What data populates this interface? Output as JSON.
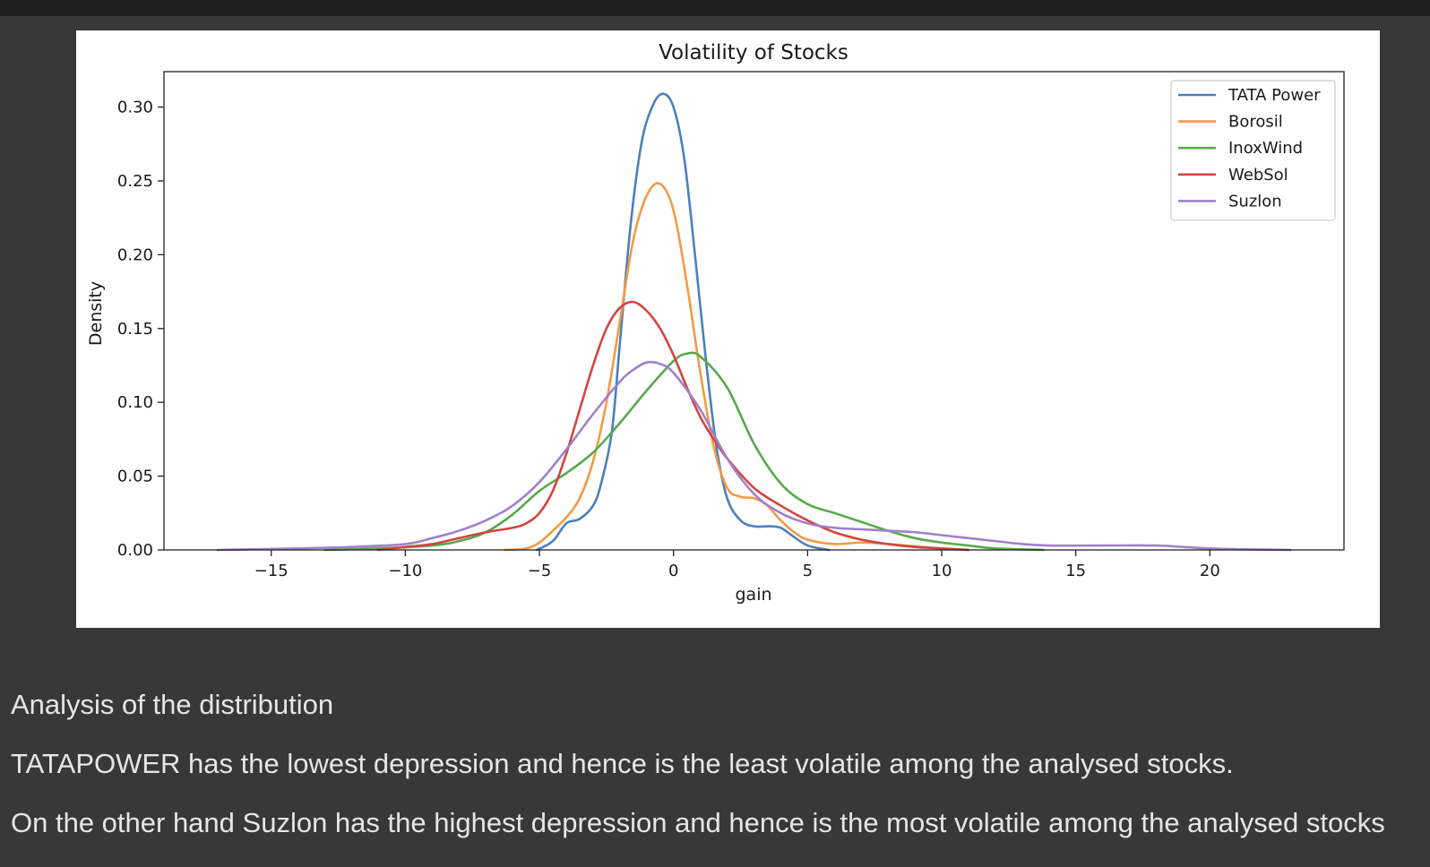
{
  "notebook": {
    "analysis_heading": "Analysis of the distribution",
    "analysis_line_1": "TATAPOWER has the lowest depression and hence is the least volatile among the analysed stocks.",
    "analysis_line_2": "On the other hand Suzlon has the highest depression and hence is the most volatile among the analysed stocks"
  },
  "chart_data": {
    "type": "line",
    "title": "Volatility of Stocks",
    "xlabel": "gain",
    "ylabel": "Density",
    "xlim": [
      -19,
      25
    ],
    "ylim": [
      0,
      0.324
    ],
    "xticks": [
      -15,
      -10,
      -5,
      0,
      5,
      10,
      15,
      20
    ],
    "xtick_labels": [
      "−15",
      "−10",
      "−5",
      "0",
      "5",
      "10",
      "15",
      "20"
    ],
    "yticks": [
      0.0,
      0.05,
      0.1,
      0.15,
      0.2,
      0.25,
      0.3
    ],
    "ytick_labels": [
      "0.00",
      "0.05",
      "0.10",
      "0.15",
      "0.20",
      "0.25",
      "0.30"
    ],
    "grid": false,
    "legend_position": "top-right",
    "series": [
      {
        "name": "TATA Power",
        "color": "#4c80bc",
        "points": [
          [
            -5.1,
            0
          ],
          [
            -4.5,
            0.006
          ],
          [
            -4,
            0.018
          ],
          [
            -3.5,
            0.021
          ],
          [
            -3,
            0.03
          ],
          [
            -2.7,
            0.045
          ],
          [
            -2.3,
            0.08
          ],
          [
            -2,
            0.14
          ],
          [
            -1.6,
            0.22
          ],
          [
            -1.2,
            0.275
          ],
          [
            -0.8,
            0.3
          ],
          [
            -0.4,
            0.309
          ],
          [
            0,
            0.3
          ],
          [
            0.4,
            0.265
          ],
          [
            0.8,
            0.2
          ],
          [
            1.2,
            0.13
          ],
          [
            1.6,
            0.07
          ],
          [
            2,
            0.035
          ],
          [
            2.5,
            0.02
          ],
          [
            3,
            0.016
          ],
          [
            3.6,
            0.016
          ],
          [
            4,
            0.015
          ],
          [
            4.4,
            0.01
          ],
          [
            5,
            0.003
          ],
          [
            5.8,
            0
          ]
        ]
      },
      {
        "name": "Borosil",
        "color": "#f39a44",
        "points": [
          [
            -6.3,
            0
          ],
          [
            -5.5,
            0.001
          ],
          [
            -5,
            0.005
          ],
          [
            -4.5,
            0.013
          ],
          [
            -4,
            0.022
          ],
          [
            -3.5,
            0.035
          ],
          [
            -3,
            0.06
          ],
          [
            -2.5,
            0.1
          ],
          [
            -2,
            0.155
          ],
          [
            -1.5,
            0.21
          ],
          [
            -1,
            0.24
          ],
          [
            -0.5,
            0.248
          ],
          [
            0,
            0.23
          ],
          [
            0.5,
            0.18
          ],
          [
            1,
            0.12
          ],
          [
            1.5,
            0.07
          ],
          [
            2,
            0.042
          ],
          [
            2.5,
            0.036
          ],
          [
            3,
            0.035
          ],
          [
            3.5,
            0.03
          ],
          [
            4,
            0.02
          ],
          [
            4.5,
            0.012
          ],
          [
            5,
            0.007
          ],
          [
            6,
            0.004
          ],
          [
            7,
            0.005
          ],
          [
            8,
            0.004
          ],
          [
            10,
            0.001
          ],
          [
            11,
            0
          ]
        ]
      },
      {
        "name": "InoxWind",
        "color": "#58a84c",
        "points": [
          [
            -13,
            0
          ],
          [
            -11,
            0.001
          ],
          [
            -9,
            0.003
          ],
          [
            -8,
            0.006
          ],
          [
            -7,
            0.012
          ],
          [
            -6,
            0.024
          ],
          [
            -5,
            0.04
          ],
          [
            -4,
            0.052
          ],
          [
            -3,
            0.066
          ],
          [
            -2,
            0.086
          ],
          [
            -1,
            0.108
          ],
          [
            0,
            0.128
          ],
          [
            0.5,
            0.133
          ],
          [
            1,
            0.131
          ],
          [
            2,
            0.11
          ],
          [
            3,
            0.072
          ],
          [
            4,
            0.045
          ],
          [
            5,
            0.031
          ],
          [
            6,
            0.025
          ],
          [
            7,
            0.019
          ],
          [
            8,
            0.013
          ],
          [
            9,
            0.008
          ],
          [
            10,
            0.005
          ],
          [
            11,
            0.003
          ],
          [
            12,
            0.001
          ],
          [
            13.8,
            0
          ]
        ]
      },
      {
        "name": "WebSol",
        "color": "#d24541",
        "points": [
          [
            -11,
            0
          ],
          [
            -10,
            0.002
          ],
          [
            -9,
            0.004
          ],
          [
            -8,
            0.008
          ],
          [
            -7,
            0.012
          ],
          [
            -6,
            0.015
          ],
          [
            -5.5,
            0.018
          ],
          [
            -5,
            0.025
          ],
          [
            -4.5,
            0.04
          ],
          [
            -4,
            0.065
          ],
          [
            -3.5,
            0.095
          ],
          [
            -3,
            0.125
          ],
          [
            -2.5,
            0.15
          ],
          [
            -2,
            0.164
          ],
          [
            -1.5,
            0.168
          ],
          [
            -1,
            0.162
          ],
          [
            -0.5,
            0.15
          ],
          [
            0,
            0.132
          ],
          [
            0.5,
            0.11
          ],
          [
            1,
            0.09
          ],
          [
            1.5,
            0.075
          ],
          [
            2,
            0.062
          ],
          [
            3,
            0.042
          ],
          [
            4,
            0.03
          ],
          [
            5,
            0.02
          ],
          [
            6,
            0.012
          ],
          [
            7,
            0.007
          ],
          [
            8,
            0.004
          ],
          [
            9,
            0.002
          ],
          [
            10,
            0.001
          ],
          [
            11,
            0
          ]
        ]
      },
      {
        "name": "Suzlon",
        "color": "#a180cc",
        "points": [
          [
            -17,
            0
          ],
          [
            -14,
            0.001
          ],
          [
            -12,
            0.002
          ],
          [
            -10,
            0.004
          ],
          [
            -9,
            0.008
          ],
          [
            -8,
            0.013
          ],
          [
            -7,
            0.02
          ],
          [
            -6,
            0.03
          ],
          [
            -5,
            0.046
          ],
          [
            -4,
            0.068
          ],
          [
            -3,
            0.092
          ],
          [
            -2,
            0.114
          ],
          [
            -1.5,
            0.122
          ],
          [
            -1,
            0.127
          ],
          [
            -0.5,
            0.126
          ],
          [
            0,
            0.12
          ],
          [
            1,
            0.095
          ],
          [
            2,
            0.062
          ],
          [
            3,
            0.038
          ],
          [
            4,
            0.025
          ],
          [
            5,
            0.018
          ],
          [
            6,
            0.015
          ],
          [
            7,
            0.014
          ],
          [
            8,
            0.013
          ],
          [
            9,
            0.012
          ],
          [
            10,
            0.01
          ],
          [
            11,
            0.008
          ],
          [
            12,
            0.006
          ],
          [
            13,
            0.004
          ],
          [
            14,
            0.003
          ],
          [
            16,
            0.003
          ],
          [
            18,
            0.003
          ],
          [
            19,
            0.002
          ],
          [
            20,
            0.001
          ],
          [
            21,
            0.0005
          ],
          [
            23,
            0
          ]
        ]
      }
    ]
  }
}
